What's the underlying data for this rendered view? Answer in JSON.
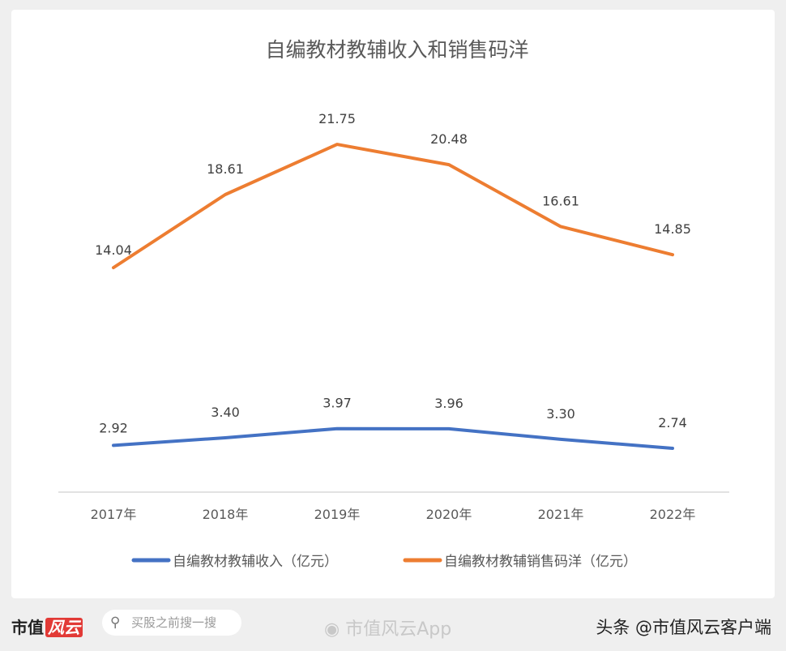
{
  "chart_data": {
    "type": "line",
    "title": "自编教材教辅收入和销售码洋",
    "categories": [
      "2017年",
      "2018年",
      "2019年",
      "2020年",
      "2021年",
      "2022年"
    ],
    "series": [
      {
        "name": "自编教材教辅收入（亿元）",
        "color": "#4472c4",
        "values": [
          2.92,
          3.4,
          3.97,
          3.96,
          3.3,
          2.74
        ]
      },
      {
        "name": "自编教材教辅销售码洋（亿元）",
        "color": "#ed7d31",
        "values": [
          14.04,
          18.61,
          21.75,
          20.48,
          16.61,
          14.85
        ]
      }
    ],
    "ylim": [
      0,
      25
    ],
    "grid": false,
    "legend": "bottom",
    "data_labels": true
  },
  "watermark": "市值风云",
  "footer": {
    "logo_text": "市值",
    "logo_script": "风云",
    "search_placeholder": "买股之前搜一搜",
    "weibo": "市值风云App",
    "toutiao": "头条 @市值风云客户端"
  }
}
